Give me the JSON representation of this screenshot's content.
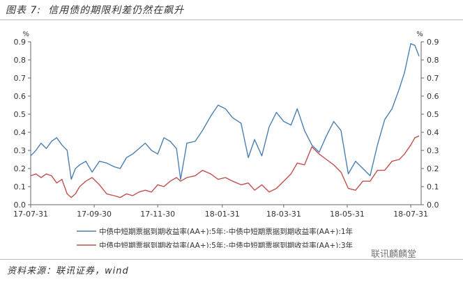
{
  "figure": {
    "label": "图表 7:",
    "title": "信用债的期限利差仍然在飙升",
    "source": "资料来源：联讯证券，wind",
    "watermark": "联讯麟麟堂"
  },
  "chart_data": {
    "type": "line",
    "y_unit_left": "%",
    "y_unit_right": "%",
    "ylim": [
      0,
      0.9
    ],
    "yticks": [
      0,
      0.1,
      0.2,
      0.3,
      0.4,
      0.5,
      0.6,
      0.7,
      0.8,
      0.9
    ],
    "ytick_labels": [
      "0.0",
      "0.1",
      "0.2",
      "0.3",
      "0.4",
      "0.5",
      "0.6",
      "0.7",
      "0.8",
      "0.9"
    ],
    "xlim": [
      "2017-07-31",
      "2018-08-10"
    ],
    "xticks": [
      "2017-07-31",
      "2017-09-30",
      "2017-11-30",
      "2018-01-31",
      "2018-03-31",
      "2018-05-31",
      "2018-07-31"
    ],
    "xtick_labels": [
      "17-07-31",
      "17-09-30",
      "17-11-30",
      "18-01-31",
      "18-03-31",
      "18-05-31",
      "18-07-31"
    ],
    "grid": false,
    "legend_position": "bottom",
    "colors": {
      "series1": "#4a7fb5",
      "series2": "#c0504d"
    },
    "series": [
      {
        "name": "中债中短期票据到期收益率(AA+):5年:-中债中短期票据到期收益率(AA+):1年",
        "x": [
          "2017-07-31",
          "2017-08-05",
          "2017-08-10",
          "2017-08-15",
          "2017-08-20",
          "2017-08-25",
          "2017-08-30",
          "2017-09-04",
          "2017-09-08",
          "2017-09-12",
          "2017-09-16",
          "2017-09-22",
          "2017-09-28",
          "2017-10-05",
          "2017-10-12",
          "2017-10-19",
          "2017-10-25",
          "2017-10-31",
          "2017-11-06",
          "2017-11-12",
          "2017-11-18",
          "2017-11-24",
          "2017-11-30",
          "2017-12-06",
          "2017-12-12",
          "2017-12-18",
          "2017-12-22",
          "2017-12-28",
          "2018-01-05",
          "2018-01-12",
          "2018-01-20",
          "2018-01-27",
          "2018-02-03",
          "2018-02-10",
          "2018-02-18",
          "2018-02-25",
          "2018-03-03",
          "2018-03-10",
          "2018-03-17",
          "2018-03-24",
          "2018-03-31",
          "2018-04-07",
          "2018-04-13",
          "2018-04-20",
          "2018-04-27",
          "2018-05-04",
          "2018-05-11",
          "2018-05-18",
          "2018-05-25",
          "2018-06-01",
          "2018-06-08",
          "2018-06-15",
          "2018-06-22",
          "2018-06-29",
          "2018-07-06",
          "2018-07-13",
          "2018-07-20",
          "2018-07-25",
          "2018-07-31",
          "2018-08-04",
          "2018-08-08"
        ],
        "values": [
          0.27,
          0.3,
          0.34,
          0.31,
          0.35,
          0.37,
          0.33,
          0.3,
          0.14,
          0.2,
          0.22,
          0.24,
          0.18,
          0.24,
          0.23,
          0.21,
          0.2,
          0.26,
          0.28,
          0.31,
          0.34,
          0.3,
          0.28,
          0.37,
          0.35,
          0.31,
          0.14,
          0.34,
          0.35,
          0.41,
          0.49,
          0.55,
          0.53,
          0.48,
          0.45,
          0.26,
          0.36,
          0.27,
          0.43,
          0.51,
          0.46,
          0.44,
          0.53,
          0.41,
          0.33,
          0.29,
          0.38,
          0.46,
          0.41,
          0.17,
          0.24,
          0.2,
          0.16,
          0.33,
          0.47,
          0.53,
          0.64,
          0.73,
          0.89,
          0.88,
          0.82
        ]
      },
      {
        "name": "中债中短期票据到期收益率(AA+):5年:-中债中短期票据到期收益率(AA+):3年",
        "x": [
          "2017-07-31",
          "2017-08-05",
          "2017-08-10",
          "2017-08-15",
          "2017-08-20",
          "2017-08-25",
          "2017-08-30",
          "2017-09-04",
          "2017-09-08",
          "2017-09-12",
          "2017-09-16",
          "2017-09-22",
          "2017-09-28",
          "2017-10-05",
          "2017-10-12",
          "2017-10-19",
          "2017-10-25",
          "2017-10-31",
          "2017-11-06",
          "2017-11-12",
          "2017-11-18",
          "2017-11-24",
          "2017-11-30",
          "2017-12-06",
          "2017-12-12",
          "2017-12-18",
          "2017-12-22",
          "2017-12-28",
          "2018-01-05",
          "2018-01-12",
          "2018-01-20",
          "2018-01-27",
          "2018-02-03",
          "2018-02-10",
          "2018-02-18",
          "2018-02-25",
          "2018-03-03",
          "2018-03-10",
          "2018-03-17",
          "2018-03-24",
          "2018-03-31",
          "2018-04-07",
          "2018-04-13",
          "2018-04-20",
          "2018-04-27",
          "2018-05-04",
          "2018-05-11",
          "2018-05-18",
          "2018-05-25",
          "2018-06-01",
          "2018-06-08",
          "2018-06-15",
          "2018-06-22",
          "2018-06-29",
          "2018-07-06",
          "2018-07-13",
          "2018-07-20",
          "2018-07-25",
          "2018-07-31",
          "2018-08-04",
          "2018-08-08"
        ],
        "values": [
          0.16,
          0.17,
          0.15,
          0.17,
          0.16,
          0.12,
          0.14,
          0.06,
          0.04,
          0.06,
          0.1,
          0.13,
          0.15,
          0.11,
          0.06,
          0.05,
          0.04,
          0.06,
          0.05,
          0.07,
          0.08,
          0.07,
          0.11,
          0.1,
          0.13,
          0.15,
          0.13,
          0.15,
          0.16,
          0.19,
          0.17,
          0.14,
          0.15,
          0.13,
          0.11,
          0.12,
          0.08,
          0.11,
          0.07,
          0.09,
          0.13,
          0.17,
          0.23,
          0.22,
          0.32,
          0.28,
          0.25,
          0.22,
          0.18,
          0.09,
          0.08,
          0.13,
          0.13,
          0.19,
          0.19,
          0.24,
          0.25,
          0.28,
          0.33,
          0.37,
          0.38
        ]
      }
    ]
  }
}
